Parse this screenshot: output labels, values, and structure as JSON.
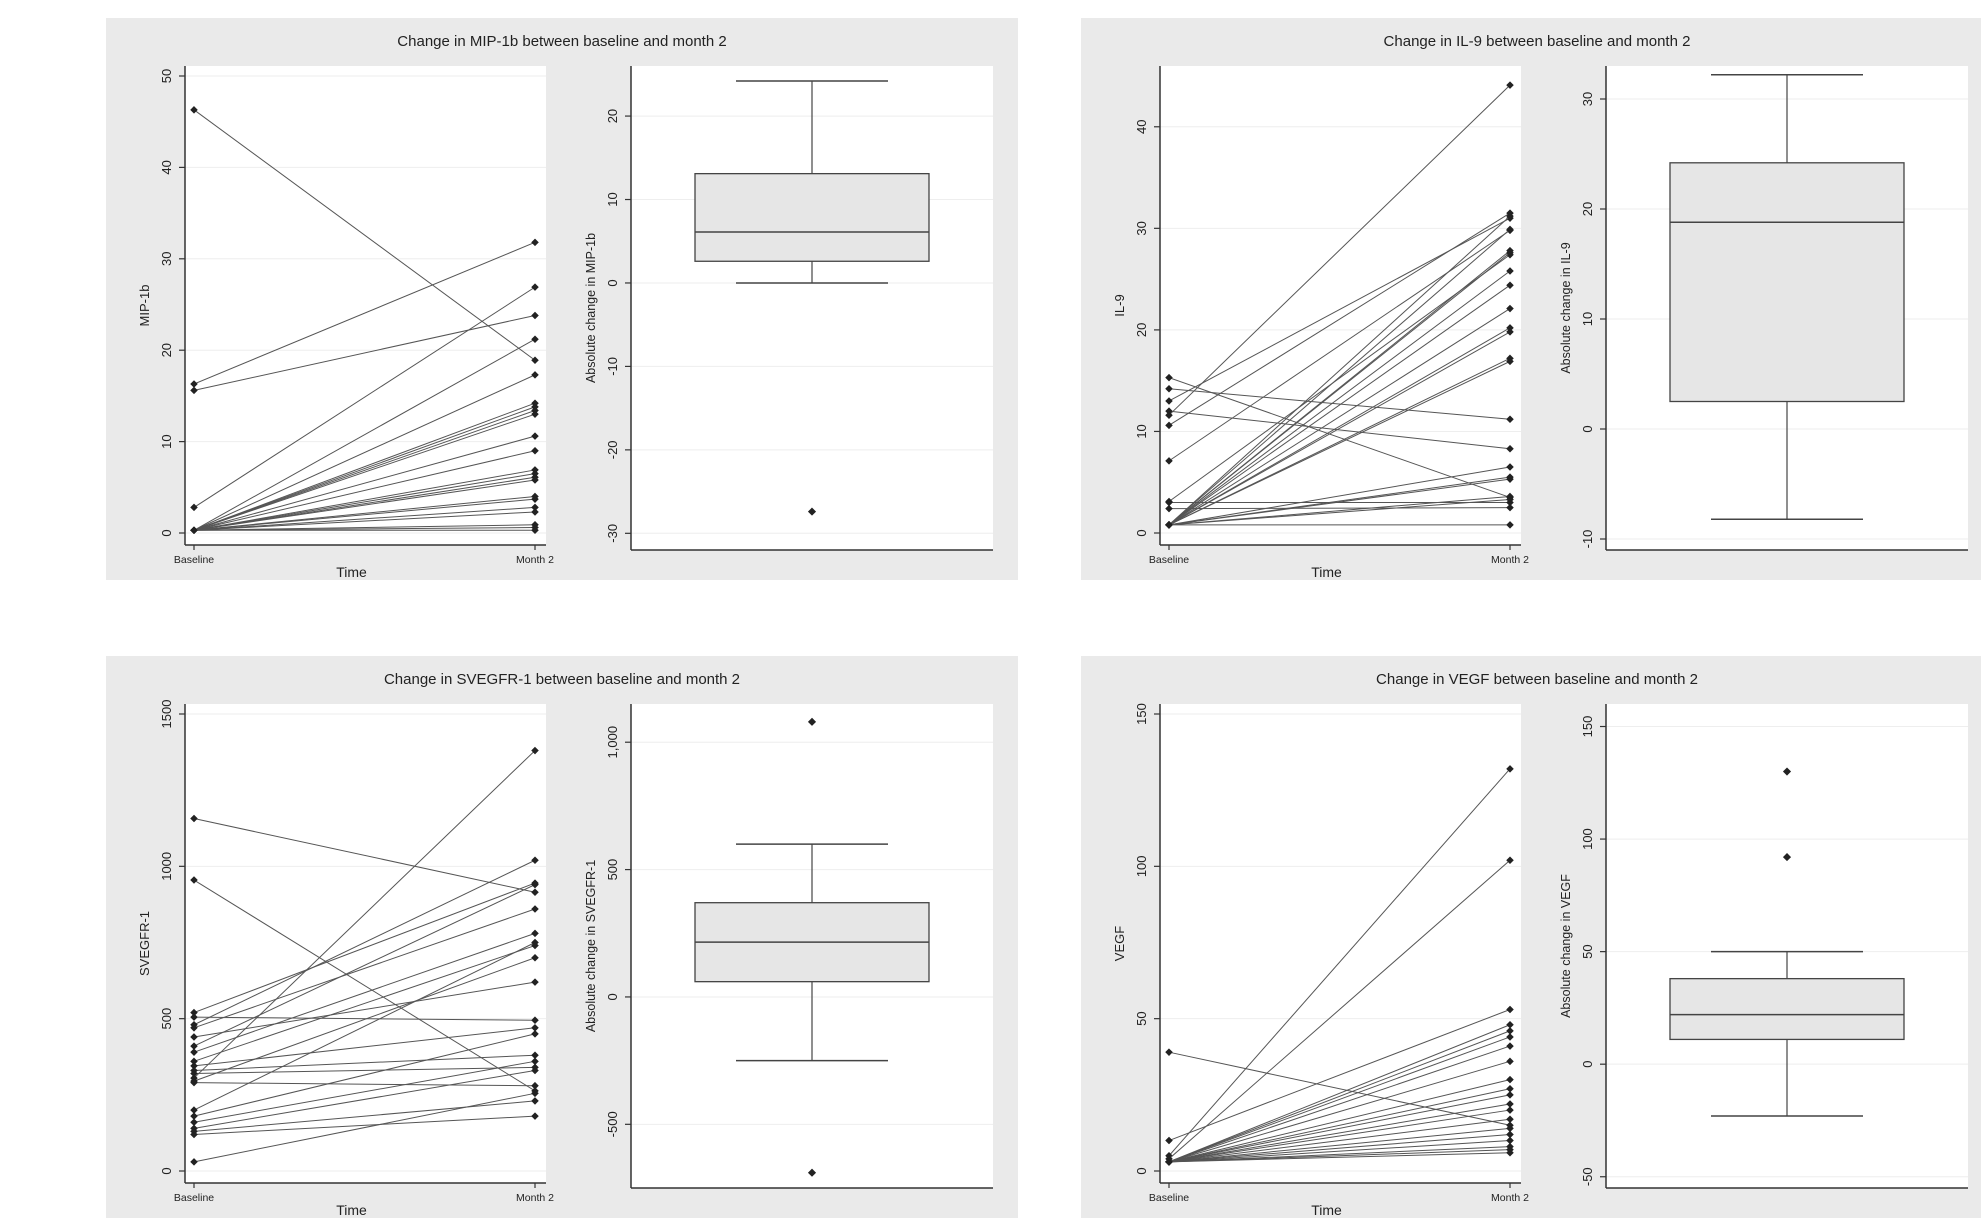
{
  "chart_data": [
    {
      "type": "line",
      "subtype": "paired-slope-with-boxplot",
      "title": "Change in MIP-1b between baseline and month 2",
      "slope": {
        "xlabel": "Time",
        "ylabel": "MIP-1b",
        "categories": [
          "Baseline",
          "Month 2"
        ],
        "ylim": [
          0,
          50
        ],
        "yticks": [
          0,
          10,
          20,
          30,
          40,
          50
        ],
        "pairs": [
          [
            46.3,
            18.9
          ],
          [
            16.3,
            31.8
          ],
          [
            15.6,
            23.8
          ],
          [
            2.8,
            26.9
          ],
          [
            0.3,
            21.2
          ],
          [
            0.3,
            17.3
          ],
          [
            0.3,
            14.2
          ],
          [
            0.3,
            13.8
          ],
          [
            0.3,
            13.4
          ],
          [
            0.3,
            13.0
          ],
          [
            0.3,
            10.6
          ],
          [
            0.3,
            9.0
          ],
          [
            0.3,
            6.9
          ],
          [
            0.3,
            6.5
          ],
          [
            0.3,
            6.1
          ],
          [
            0.3,
            5.8
          ],
          [
            0.3,
            4.0
          ],
          [
            0.3,
            3.7
          ],
          [
            0.3,
            2.8
          ],
          [
            0.3,
            2.3
          ],
          [
            0.3,
            0.9
          ],
          [
            0.3,
            0.6
          ],
          [
            0.3,
            0.3
          ]
        ]
      },
      "box": {
        "ylabel": "Absolute change in MIP-1b",
        "ylim": [
          -32,
          26
        ],
        "yticks": [
          -30,
          -20,
          -10,
          0,
          10,
          20
        ],
        "ytick_labels": [
          "-30",
          "-20",
          "-10",
          "0",
          "10",
          "20"
        ],
        "whisker_low": 0,
        "q1": 2.6,
        "median": 6.1,
        "q3": 13.1,
        "whisker_high": 24.2,
        "outliers": [
          -27.4
        ]
      }
    },
    {
      "type": "line",
      "subtype": "paired-slope-with-boxplot",
      "title": "Change in IL-9 between baseline and month 2",
      "slope": {
        "xlabel": "Time",
        "ylabel": "IL-9",
        "categories": [
          "Baseline",
          "Month 2"
        ],
        "ylim": [
          0,
          45
        ],
        "yticks": [
          0,
          10,
          20,
          30,
          40
        ],
        "pairs": [
          [
            15.3,
            3.5
          ],
          [
            14.2,
            11.2
          ],
          [
            13.0,
            31.0
          ],
          [
            12.0,
            8.3
          ],
          [
            11.6,
            44.1
          ],
          [
            10.6,
            31.5
          ],
          [
            7.1,
            29.8
          ],
          [
            3.1,
            27.4
          ],
          [
            3.0,
            3.0
          ],
          [
            2.4,
            2.5
          ],
          [
            0.8,
            31.2
          ],
          [
            0.8,
            29.9
          ],
          [
            0.8,
            27.8
          ],
          [
            0.8,
            27.6
          ],
          [
            0.8,
            25.8
          ],
          [
            0.8,
            24.4
          ],
          [
            0.8,
            22.1
          ],
          [
            0.8,
            20.2
          ],
          [
            0.8,
            19.8
          ],
          [
            0.8,
            17.2
          ],
          [
            0.8,
            16.9
          ],
          [
            0.8,
            6.5
          ],
          [
            0.8,
            5.5
          ],
          [
            0.8,
            5.3
          ],
          [
            0.8,
            3.6
          ],
          [
            0.8,
            3.3
          ],
          [
            0.8,
            0.8
          ]
        ]
      },
      "box": {
        "ylabel": "Absolute change in IL-9",
        "ylim": [
          -11,
          33
        ],
        "yticks": [
          -10,
          0,
          10,
          20,
          30
        ],
        "ytick_labels": [
          "-10",
          "0",
          "10",
          "20",
          "30"
        ],
        "whisker_low": -8.2,
        "q1": 2.5,
        "median": 18.8,
        "q3": 24.2,
        "whisker_high": 32.2,
        "outliers": []
      }
    },
    {
      "type": "line",
      "subtype": "paired-slope-with-boxplot",
      "title": "Change in SVEGFR-1 between baseline and month 2",
      "slope": {
        "xlabel": "Time",
        "ylabel": "SVEGFR-1",
        "categories": [
          "Baseline",
          "Month 2"
        ],
        "ylim": [
          0,
          1500
        ],
        "yticks": [
          0,
          500,
          1000,
          1500
        ],
        "pairs": [
          [
            1157,
            915
          ],
          [
            955,
            263
          ],
          [
            520,
            945
          ],
          [
            505,
            495
          ],
          [
            480,
            1020
          ],
          [
            470,
            860
          ],
          [
            440,
            620
          ],
          [
            410,
            940
          ],
          [
            390,
            780
          ],
          [
            360,
            740
          ],
          [
            345,
            470
          ],
          [
            330,
            380
          ],
          [
            320,
            340
          ],
          [
            305,
            1380
          ],
          [
            295,
            700
          ],
          [
            290,
            280
          ],
          [
            200,
            750
          ],
          [
            180,
            450
          ],
          [
            160,
            360
          ],
          [
            140,
            330
          ],
          [
            130,
            230
          ],
          [
            120,
            180
          ],
          [
            30,
            255
          ]
        ]
      },
      "box": {
        "ylabel": "Absolute change in SVEGFR-1",
        "ylim": [
          -750,
          1150
        ],
        "yticks": [
          -500,
          0,
          500,
          1000
        ],
        "ytick_labels": [
          "-500",
          "0",
          "500",
          "1,000"
        ],
        "whisker_low": -250,
        "q1": 60,
        "median": 215,
        "q3": 370,
        "whisker_high": 600,
        "outliers": [
          1080,
          -690
        ]
      }
    },
    {
      "type": "line",
      "subtype": "paired-slope-with-boxplot",
      "title": "Change in VEGF between baseline and month 2",
      "slope": {
        "xlabel": "Time",
        "ylabel": "VEGF",
        "categories": [
          "Baseline",
          "Month 2"
        ],
        "ylim": [
          0,
          150
        ],
        "yticks": [
          0,
          50,
          100,
          150
        ],
        "pairs": [
          [
            39,
            15
          ],
          [
            10,
            53
          ],
          [
            5,
            132
          ],
          [
            4,
            102
          ],
          [
            3,
            48
          ],
          [
            3,
            46
          ],
          [
            3,
            44
          ],
          [
            3,
            41
          ],
          [
            3,
            36
          ],
          [
            3,
            30
          ],
          [
            3,
            27
          ],
          [
            3,
            25
          ],
          [
            3,
            22
          ],
          [
            3,
            20
          ],
          [
            3,
            17
          ],
          [
            3,
            14
          ],
          [
            3,
            12
          ],
          [
            3,
            10
          ],
          [
            3,
            8
          ],
          [
            3,
            7
          ],
          [
            3,
            6
          ]
        ]
      },
      "box": {
        "ylabel": "Absolute change in VEGF",
        "ylim": [
          -55,
          160
        ],
        "yticks": [
          -50,
          0,
          50,
          100,
          150
        ],
        "ytick_labels": [
          "-50",
          "0",
          "50",
          "100",
          "150"
        ],
        "whisker_low": -23,
        "q1": 11,
        "median": 22,
        "q3": 38,
        "whisker_high": 50,
        "outliers": [
          130,
          92
        ]
      }
    }
  ]
}
